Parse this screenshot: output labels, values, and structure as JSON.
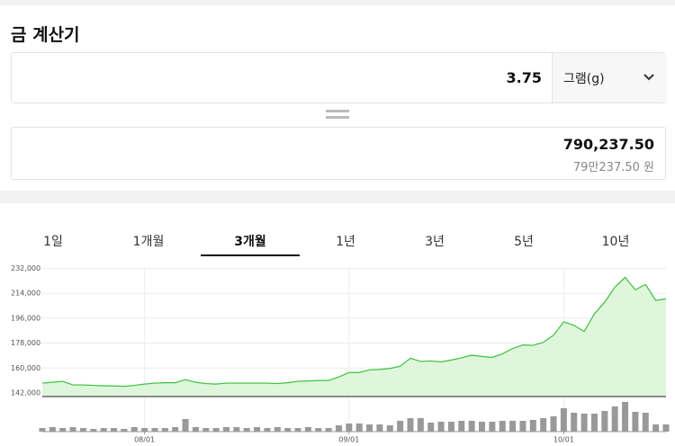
{
  "header": {
    "title": "금 계산기"
  },
  "input": {
    "amount": "3.75",
    "unit": "그램(g)"
  },
  "result": {
    "value": "790,237.50",
    "korean": "79만237.50 원"
  },
  "tabs": {
    "items": [
      "1일",
      "1개월",
      "3개월",
      "1년",
      "3년",
      "5년",
      "10년"
    ],
    "active": 2
  },
  "chart_data": {
    "type": "line",
    "categories": [
      null,
      null,
      null,
      null,
      null,
      null,
      null,
      null,
      null,
      null,
      "08/01",
      null,
      null,
      null,
      null,
      null,
      null,
      null,
      null,
      null,
      null,
      null,
      null,
      null,
      null,
      null,
      null,
      null,
      null,
      null,
      "09/01",
      null,
      null,
      null,
      null,
      null,
      null,
      null,
      null,
      null,
      null,
      null,
      null,
      null,
      null,
      null,
      null,
      null,
      null,
      null,
      null,
      "10/01",
      null,
      null,
      null,
      null,
      null,
      null,
      null,
      null,
      null,
      null
    ],
    "series": [
      {
        "color": "#3cc13c",
        "values": [
          149100,
          149700,
          150400,
          147800,
          147800,
          147500,
          147100,
          147100,
          146800,
          147500,
          148400,
          149100,
          149400,
          149400,
          151600,
          149700,
          148800,
          148400,
          149100,
          149100,
          149100,
          149100,
          149100,
          148800,
          149400,
          150400,
          150700,
          151000,
          151000,
          153600,
          156800,
          156800,
          158700,
          159000,
          159700,
          161300,
          167100,
          164800,
          165100,
          164500,
          165800,
          167400,
          169300,
          168400,
          167700,
          170300,
          174100,
          176700,
          176400,
          178600,
          183800,
          193400,
          190900,
          186400,
          199200,
          207600,
          218500,
          225600,
          216600,
          220400,
          208900,
          210100
        ]
      },
      {
        "color": "#999999",
        "axis": "y2",
        "values": [
          4,
          5,
          4,
          5,
          4,
          3,
          4,
          4,
          3,
          5,
          4,
          4,
          4,
          5,
          14,
          5,
          4,
          4,
          5,
          5,
          4,
          5,
          4,
          5,
          4,
          4,
          5,
          4,
          4,
          7,
          9,
          9,
          8,
          8,
          7,
          12,
          15,
          15,
          10,
          11,
          11,
          12,
          12,
          11,
          11,
          12,
          12,
          12,
          13,
          15,
          17,
          26,
          21,
          20,
          20,
          23,
          28,
          33,
          22,
          21,
          8,
          8
        ]
      }
    ],
    "ylim": [
      139400,
      233000
    ],
    "yticks": [
      {
        "value": 142000,
        "label": "142,000"
      },
      {
        "value": 160000,
        "label": "160,000"
      },
      {
        "value": 178000,
        "label": "178,000"
      },
      {
        "value": 196000,
        "label": "196,000"
      },
      {
        "value": 214000,
        "label": "214,000"
      },
      {
        "value": 232000,
        "label": "232,000"
      }
    ],
    "y2lim": [
      0,
      36
    ],
    "grid": true
  }
}
